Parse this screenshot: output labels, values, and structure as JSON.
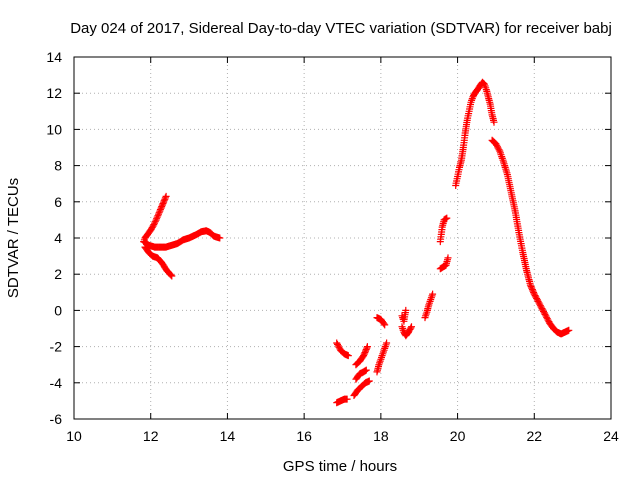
{
  "chart_data": {
    "type": "scatter",
    "title": "Day 024 of 2017, Sidereal Day-to-day VTEC variation (SDTVAR) for receiver babj",
    "xlabel": "GPS time / hours",
    "ylabel": "SDTVAR / TECUs",
    "xlim": [
      10,
      24
    ],
    "ylim": [
      -6,
      14
    ],
    "xticks": [
      10,
      12,
      14,
      16,
      18,
      20,
      22,
      24
    ],
    "yticks": [
      -6,
      -4,
      -2,
      0,
      2,
      4,
      6,
      8,
      10,
      12,
      14
    ],
    "grid": true,
    "marker": "+",
    "color": "#ff0000",
    "series": [
      {
        "name": "SDTVAR",
        "segments": [
          [
            [
              12.4,
              6.3
            ],
            [
              12.32,
              5.9
            ],
            [
              12.22,
              5.4
            ],
            [
              12.12,
              4.9
            ],
            [
              12.02,
              4.5
            ],
            [
              11.92,
              4.2
            ],
            [
              11.85,
              4.0
            ],
            [
              11.82,
              3.8
            ]
          ],
          [
            [
              11.82,
              3.8
            ],
            [
              11.95,
              3.6
            ],
            [
              12.1,
              3.5
            ],
            [
              12.25,
              3.5
            ],
            [
              12.4,
              3.5
            ],
            [
              12.55,
              3.6
            ],
            [
              12.7,
              3.7
            ],
            [
              12.85,
              3.9
            ],
            [
              13.0,
              4.0
            ],
            [
              13.1,
              4.1
            ]
          ],
          [
            [
              11.85,
              3.5
            ],
            [
              11.95,
              3.2
            ],
            [
              12.05,
              3.0
            ],
            [
              12.18,
              2.9
            ],
            [
              12.3,
              2.6
            ],
            [
              12.42,
              2.2
            ],
            [
              12.55,
              1.9
            ]
          ],
          [
            [
              13.1,
              4.1
            ],
            [
              13.2,
              4.2
            ],
            [
              13.32,
              4.35
            ],
            [
              13.45,
              4.4
            ],
            [
              13.55,
              4.3
            ],
            [
              13.65,
              4.1
            ],
            [
              13.8,
              4.0
            ]
          ],
          [
            [
              16.85,
              -1.8
            ],
            [
              16.95,
              -2.2
            ],
            [
              17.05,
              -2.4
            ],
            [
              17.15,
              -2.5
            ]
          ],
          [
            [
              16.85,
              -5.1
            ],
            [
              16.95,
              -5.0
            ],
            [
              17.05,
              -4.9
            ],
            [
              17.12,
              -4.9
            ]
          ],
          [
            [
              17.3,
              -4.7
            ],
            [
              17.4,
              -4.4
            ],
            [
              17.5,
              -4.2
            ],
            [
              17.6,
              -4.0
            ],
            [
              17.7,
              -3.9
            ]
          ],
          [
            [
              17.35,
              -3.8
            ],
            [
              17.45,
              -3.5
            ],
            [
              17.55,
              -3.4
            ],
            [
              17.62,
              -3.3
            ]
          ],
          [
            [
              17.35,
              -3.0
            ],
            [
              17.45,
              -2.8
            ],
            [
              17.55,
              -2.5
            ],
            [
              17.65,
              -2.0
            ]
          ],
          [
            [
              17.9,
              -0.4
            ],
            [
              18.0,
              -0.5
            ],
            [
              18.1,
              -0.8
            ]
          ],
          [
            [
              17.9,
              -3.4
            ],
            [
              17.95,
              -3.0
            ],
            [
              18.0,
              -2.7
            ],
            [
              18.05,
              -2.4
            ],
            [
              18.1,
              -2.1
            ],
            [
              18.15,
              -1.8
            ]
          ],
          [
            [
              18.55,
              -0.9
            ],
            [
              18.6,
              -1.2
            ],
            [
              18.65,
              -1.4
            ],
            [
              18.72,
              -1.2
            ],
            [
              18.8,
              -0.9
            ]
          ],
          [
            [
              18.55,
              -0.3
            ],
            [
              18.6,
              -0.6
            ],
            [
              18.65,
              0.0
            ]
          ],
          [
            [
              19.15,
              -0.4
            ],
            [
              19.2,
              -0.1
            ],
            [
              19.25,
              0.3
            ],
            [
              19.3,
              0.6
            ],
            [
              19.35,
              0.9
            ]
          ],
          [
            [
              19.55,
              2.3
            ],
            [
              19.62,
              2.4
            ],
            [
              19.7,
              2.5
            ],
            [
              19.75,
              2.9
            ]
          ],
          [
            [
              19.55,
              3.8
            ],
            [
              19.6,
              4.6
            ],
            [
              19.65,
              5.0
            ],
            [
              19.72,
              5.1
            ]
          ],
          [
            [
              19.95,
              6.9
            ],
            [
              20.0,
              7.4
            ],
            [
              20.05,
              7.9
            ],
            [
              20.1,
              8.3
            ],
            [
              20.15,
              9.0
            ],
            [
              20.2,
              9.8
            ],
            [
              20.25,
              10.5
            ],
            [
              20.3,
              11.0
            ],
            [
              20.35,
              11.5
            ],
            [
              20.4,
              11.8
            ],
            [
              20.45,
              12.0
            ],
            [
              20.52,
              12.2
            ],
            [
              20.58,
              12.4
            ],
            [
              20.65,
              12.6
            ],
            [
              20.7,
              12.5
            ],
            [
              20.75,
              12.2
            ],
            [
              20.8,
              11.8
            ],
            [
              20.85,
              11.4
            ],
            [
              20.9,
              10.8
            ],
            [
              20.95,
              10.4
            ]
          ],
          [
            [
              20.9,
              9.4
            ],
            [
              21.0,
              9.2
            ],
            [
              21.1,
              8.8
            ],
            [
              21.2,
              8.2
            ],
            [
              21.3,
              7.5
            ],
            [
              21.4,
              6.5
            ],
            [
              21.5,
              5.5
            ],
            [
              21.6,
              4.3
            ],
            [
              21.7,
              3.2
            ],
            [
              21.8,
              2.2
            ],
            [
              21.9,
              1.4
            ],
            [
              22.0,
              0.9
            ],
            [
              22.1,
              0.5
            ],
            [
              22.2,
              0.1
            ],
            [
              22.3,
              -0.3
            ],
            [
              22.4,
              -0.7
            ],
            [
              22.5,
              -1.0
            ],
            [
              22.6,
              -1.2
            ],
            [
              22.7,
              -1.3
            ],
            [
              22.8,
              -1.2
            ],
            [
              22.9,
              -1.1
            ]
          ]
        ]
      }
    ]
  }
}
